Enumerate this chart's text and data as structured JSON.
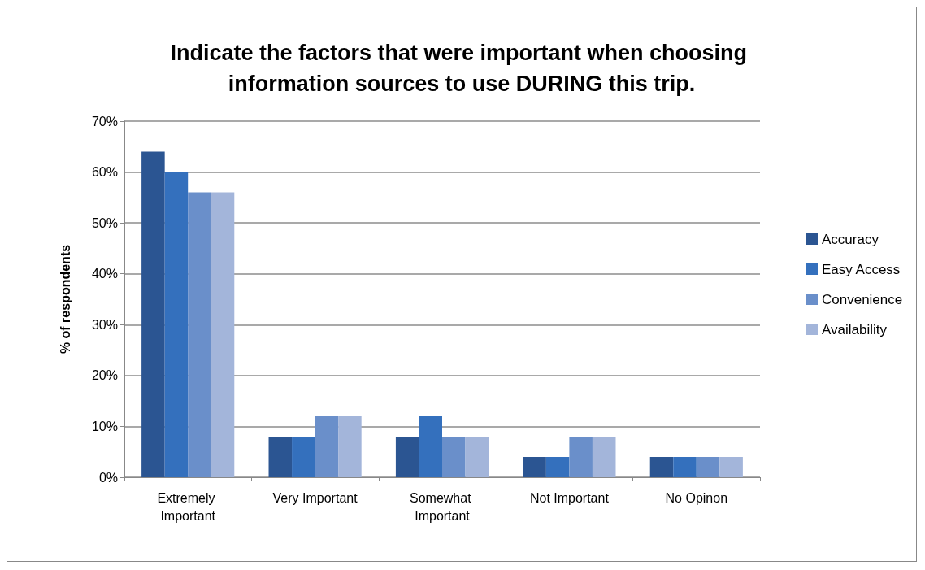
{
  "chart_data": {
    "type": "bar",
    "title": "Indicate the factors that were important when choosing information sources to use DURING this trip.",
    "ylabel": "% of respondents",
    "categories": [
      "Extremely Important",
      "Very Important",
      "Somewhat Important",
      "Not Important",
      "No Opinon"
    ],
    "series": [
      {
        "name": "Accuracy",
        "color": "#2b5592",
        "values": [
          64,
          8,
          8,
          4,
          4
        ]
      },
      {
        "name": "Easy Access",
        "color": "#3470bd",
        "values": [
          60,
          8,
          12,
          4,
          4
        ]
      },
      {
        "name": "Convenience",
        "color": "#6a8fca",
        "values": [
          56,
          12,
          8,
          8,
          4
        ]
      },
      {
        "name": "Availability",
        "color": "#a3b5da",
        "values": [
          56,
          12,
          8,
          8,
          4
        ]
      }
    ],
    "ylim": [
      0,
      70
    ],
    "yticks": [
      {
        "value": 0,
        "label": "0%"
      },
      {
        "value": 10,
        "label": "10%"
      },
      {
        "value": 20,
        "label": "20%"
      },
      {
        "value": 30,
        "label": "30%"
      },
      {
        "value": 40,
        "label": "40%"
      },
      {
        "value": 50,
        "label": "50%"
      },
      {
        "value": 60,
        "label": "60%"
      },
      {
        "value": 70,
        "label": "70%"
      }
    ],
    "grid": "y",
    "legend": "right"
  }
}
